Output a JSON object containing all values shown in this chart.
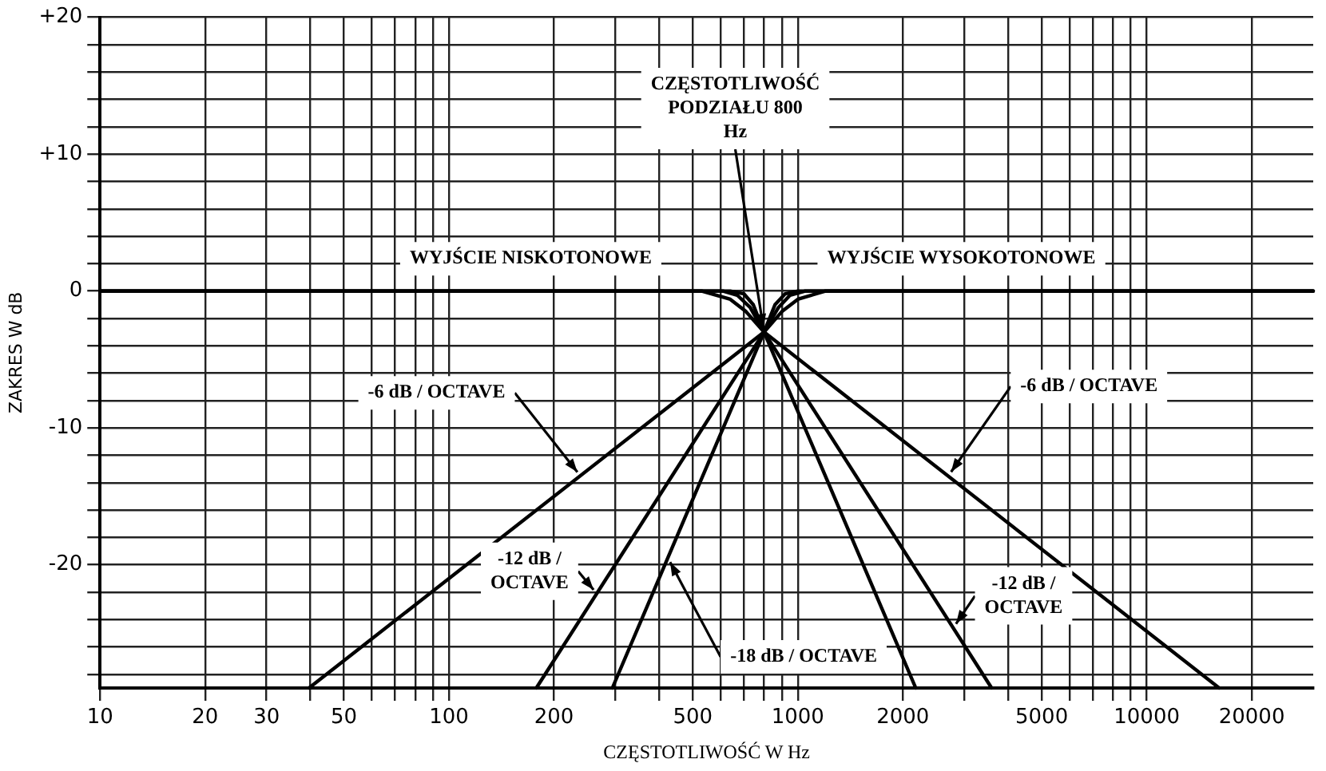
{
  "chart_data": {
    "type": "line",
    "xlabel": "CZĘSTOTLIWOŚĆ W Hz",
    "ylabel": "ZAKRES W dB",
    "log": "x",
    "grid": true,
    "legend": false,
    "marker": "none",
    "line_style": "solid",
    "xlim": [
      10,
      30000
    ],
    "ylim": [
      -29,
      20
    ],
    "xticks": [
      10,
      20,
      30,
      {
        "value": 40,
        "label": null
      },
      50,
      {
        "value": 60,
        "label": null
      },
      {
        "value": 70,
        "label": null
      },
      {
        "value": 80,
        "label": null
      },
      {
        "value": 90,
        "label": null
      },
      100,
      200,
      {
        "value": 300,
        "label": null
      },
      {
        "value": 400,
        "label": null
      },
      500,
      {
        "value": 600,
        "label": null
      },
      {
        "value": 700,
        "label": null
      },
      {
        "value": 800,
        "label": null
      },
      {
        "value": 900,
        "label": null
      },
      1000,
      2000,
      {
        "value": 3000,
        "label": null
      },
      {
        "value": 4000,
        "label": null
      },
      5000,
      {
        "value": 6000,
        "label": null
      },
      {
        "value": 7000,
        "label": null
      },
      {
        "value": 8000,
        "label": null
      },
      {
        "value": 9000,
        "label": null
      },
      10000,
      20000
    ],
    "yticks": [
      {
        "value": -28,
        "label": null
      },
      {
        "value": -26,
        "label": null
      },
      {
        "value": -24,
        "label": null
      },
      {
        "value": -22,
        "label": null
      },
      -20,
      {
        "value": -18,
        "label": null
      },
      {
        "value": -16,
        "label": null
      },
      {
        "value": -14,
        "label": null
      },
      {
        "value": -12,
        "label": null
      },
      -10,
      {
        "value": -8,
        "label": null
      },
      {
        "value": -6,
        "label": null
      },
      {
        "value": -4,
        "label": null
      },
      {
        "value": -2,
        "label": null
      },
      0,
      {
        "value": 2,
        "label": null
      },
      {
        "value": 4,
        "label": null
      },
      {
        "value": 6,
        "label": null
      },
      {
        "value": 8,
        "label": null
      },
      {
        "value": 10,
        "label": "+10"
      },
      {
        "value": 12,
        "label": null
      },
      {
        "value": 14,
        "label": null
      },
      {
        "value": 16,
        "label": null
      },
      {
        "value": 18,
        "label": null
      },
      {
        "value": 20,
        "label": "+20"
      }
    ],
    "series": [
      {
        "color": "#000000",
        "x": [
          39.7,
          800,
          900,
          1000,
          1200,
          30000
        ],
        "values": [
          -29,
          -3,
          -1.5,
          -0.6,
          0,
          0
        ]
      },
      {
        "color": "#000000",
        "x": [
          178,
          800,
          880,
          950,
          1050,
          30000
        ],
        "values": [
          -29,
          -3,
          -1.2,
          -0.3,
          0,
          0
        ]
      },
      {
        "color": "#000000",
        "x": [
          294,
          800,
          860,
          920,
          1000,
          30000
        ],
        "values": [
          -29,
          -3,
          -1,
          -0.2,
          0,
          0
        ]
      },
      {
        "color": "#000000",
        "x": [
          10,
          530,
          640,
          710,
          800,
          16130
        ],
        "values": [
          0,
          0,
          -0.6,
          -1.5,
          -3,
          -29
        ]
      },
      {
        "color": "#000000",
        "x": [
          10,
          610,
          670,
          730,
          800,
          3592
        ],
        "values": [
          0,
          0,
          -0.3,
          -1.2,
          -3,
          -29
        ]
      },
      {
        "color": "#000000",
        "x": [
          10,
          640,
          700,
          745,
          800,
          2177
        ],
        "values": [
          0,
          0,
          -0.2,
          -1,
          -3,
          -29
        ]
      }
    ],
    "annotations": [
      {
        "text": "CZĘSTOTLIWOŚĆ PODZIAŁU 800 Hz",
        "x": 800,
        "y": -3
      },
      "WYJŚCIE NISKOTONOWE",
      "WYJŚCIE WYSOKOTONOWE",
      {
        "text": "-6 dB / OCTAVE",
        "x": 238,
        "y": -13.5
      },
      {
        "text": "-6 dB / OCTAVE",
        "x": 2700,
        "y": -13.5
      },
      {
        "text": "-12 dB / OCTAVE",
        "x": 265,
        "y": -22.1
      },
      {
        "text": "-12 dB / OCTAVE",
        "x": 2790,
        "y": -24.6
      },
      {
        "text": "-18 dB / OCTAVE",
        "x": 424,
        "y": -19.5
      }
    ]
  }
}
